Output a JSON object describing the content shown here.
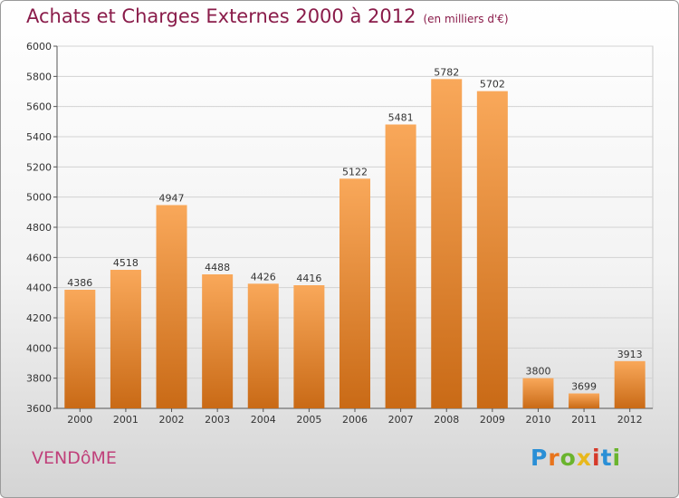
{
  "header": {
    "title": "Achats et Charges Externes 2000 à 2012",
    "subtitle": "(en milliers d'€)"
  },
  "footer": {
    "city": "VENDôME",
    "logo": [
      "P",
      "r",
      "o",
      "x",
      "i",
      "t",
      "i"
    ]
  },
  "colors": {
    "bar_light": "#f9a85a",
    "bar_dark": "#c96a16",
    "title": "#8a1c4a"
  },
  "chart_data": {
    "type": "bar",
    "title": "Achats et Charges Externes 2000 à 2012",
    "subtitle": "(en milliers d'€)",
    "categories": [
      "2000",
      "2001",
      "2002",
      "2003",
      "2004",
      "2005",
      "2006",
      "2007",
      "2008",
      "2009",
      "2010",
      "2011",
      "2012"
    ],
    "values": [
      4386,
      4518,
      4947,
      4488,
      4426,
      4416,
      5122,
      5481,
      5782,
      5702,
      3800,
      3699,
      3913
    ],
    "ylim": [
      3600,
      6000
    ],
    "yticks": [
      3600,
      3800,
      4000,
      4200,
      4400,
      4600,
      4800,
      5000,
      5200,
      5400,
      5600,
      5800,
      6000
    ],
    "grid": true,
    "legend": "none"
  }
}
